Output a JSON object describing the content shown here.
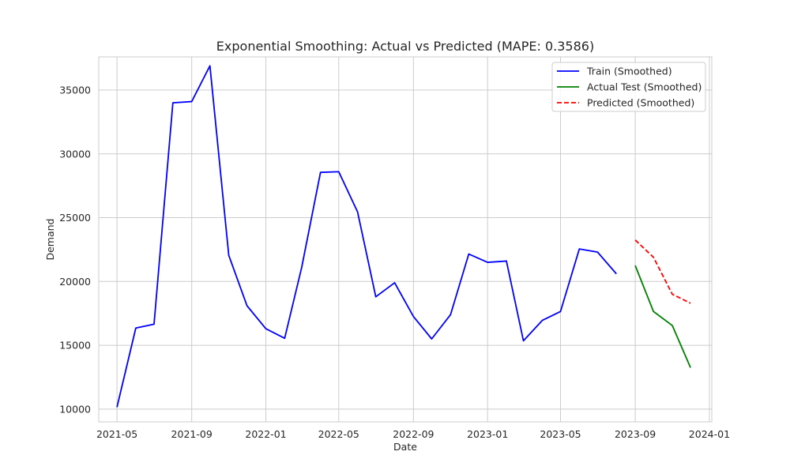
{
  "chart_data": {
    "type": "line",
    "title": "Exponential Smoothing: Actual vs Predicted (MAPE: 0.3586)",
    "xlabel": "Date",
    "ylabel": "Demand",
    "xlim": [
      "2021-04",
      "2024-01-05"
    ],
    "ylim": [
      9000,
      37600
    ],
    "x_ticks": [
      "2021-05",
      "2021-09",
      "2022-01",
      "2022-05",
      "2022-09",
      "2023-01",
      "2023-05",
      "2023-09",
      "2024-01"
    ],
    "y_ticks": [
      10000,
      15000,
      20000,
      25000,
      30000,
      35000
    ],
    "grid": true,
    "legend_position": "top-right",
    "series": [
      {
        "name": "Train (Smoothed)",
        "color": "#0000ff",
        "style": "solid",
        "points": [
          [
            "2021-05",
            10150
          ],
          [
            "2021-06",
            16350
          ],
          [
            "2021-07",
            16650
          ],
          [
            "2021-08",
            34000
          ],
          [
            "2021-09",
            34100
          ],
          [
            "2021-10",
            36900
          ],
          [
            "2021-11",
            22050
          ],
          [
            "2021-12",
            18100
          ],
          [
            "2022-01",
            16300
          ],
          [
            "2022-02",
            15550
          ],
          [
            "2022-03",
            21100
          ],
          [
            "2022-04",
            28550
          ],
          [
            "2022-05",
            28600
          ],
          [
            "2022-06",
            25450
          ],
          [
            "2022-07",
            18800
          ],
          [
            "2022-08",
            19900
          ],
          [
            "2022-09",
            17250
          ],
          [
            "2022-10",
            15500
          ],
          [
            "2022-11",
            17400
          ],
          [
            "2022-12",
            22150
          ],
          [
            "2023-01",
            21500
          ],
          [
            "2023-02",
            21600
          ],
          [
            "2023-03",
            15350
          ],
          [
            "2023-04",
            16950
          ],
          [
            "2023-05",
            17650
          ],
          [
            "2023-06",
            22550
          ],
          [
            "2023-07",
            22300
          ],
          [
            "2023-08",
            20600
          ]
        ]
      },
      {
        "name": "Actual Test (Smoothed)",
        "color": "#008000",
        "style": "solid",
        "points": [
          [
            "2023-09",
            21250
          ],
          [
            "2023-10",
            17650
          ],
          [
            "2023-11",
            16550
          ],
          [
            "2023-12",
            13250
          ]
        ]
      },
      {
        "name": "Predicted (Smoothed)",
        "color": "#ff0000",
        "style": "dashed",
        "points": [
          [
            "2023-09",
            23250
          ],
          [
            "2023-10",
            21900
          ],
          [
            "2023-11",
            19000
          ],
          [
            "2023-12",
            18300
          ]
        ]
      }
    ]
  }
}
